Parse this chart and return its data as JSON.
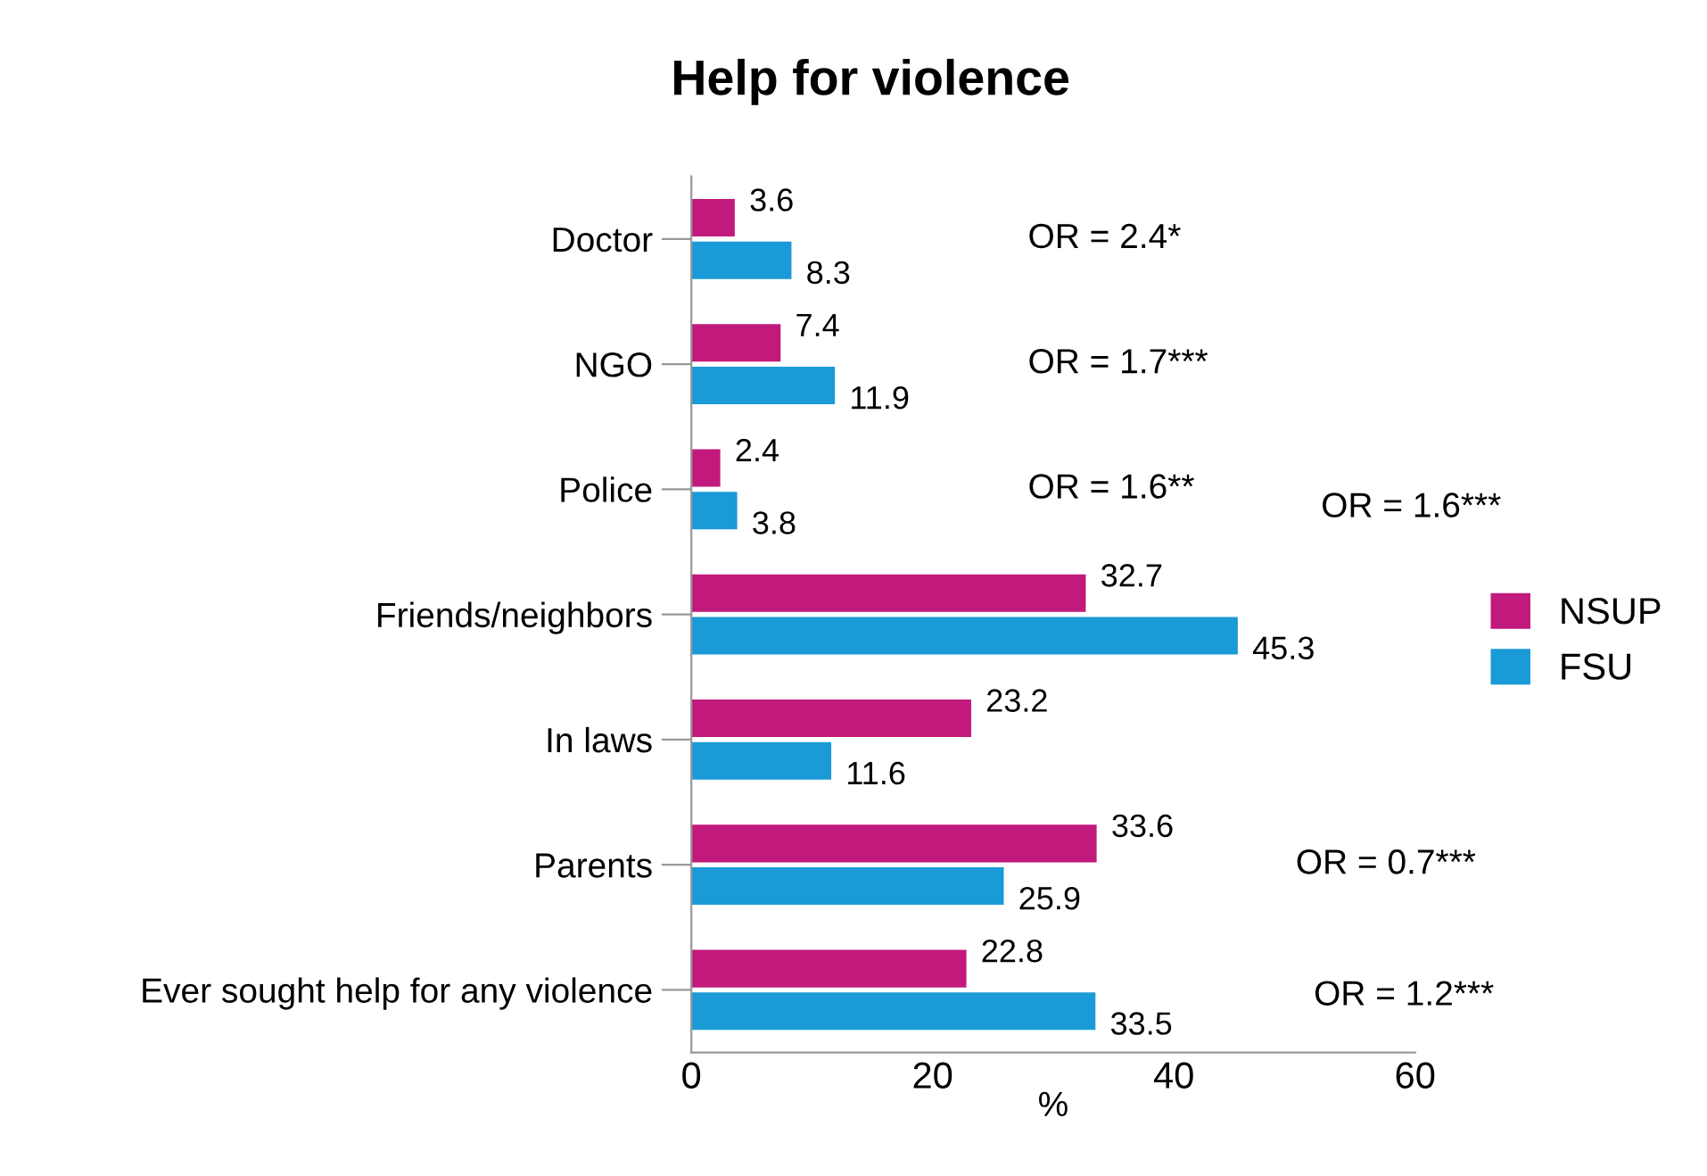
{
  "chart_data": {
    "type": "bar",
    "orientation": "horizontal",
    "title": "Help for violence",
    "xlabel": "%",
    "categories": [
      "Doctor",
      "NGO",
      "Police",
      "Friends/neighbors",
      "In laws",
      "Parents",
      "Ever sought help for any violence"
    ],
    "series": [
      {
        "name": "NSUP",
        "color": "#c2197c",
        "values": [
          3.6,
          7.4,
          2.4,
          32.7,
          23.2,
          33.6,
          22.8
        ]
      },
      {
        "name": "FSU",
        "color": "#1a9ad6",
        "values": [
          8.3,
          11.9,
          3.8,
          45.3,
          11.6,
          25.9,
          33.5
        ]
      }
    ],
    "xlim": [
      0,
      60
    ],
    "xticks": [
      0,
      20,
      40,
      60
    ],
    "data_labels": true,
    "legend": "right",
    "grid": false,
    "annotations": [
      "OR = 2.4*",
      "OR = 1.7***",
      "OR = 1.6**",
      "OR = 1.6***",
      "OR = 0.7***",
      "OR = 1.2***"
    ]
  }
}
